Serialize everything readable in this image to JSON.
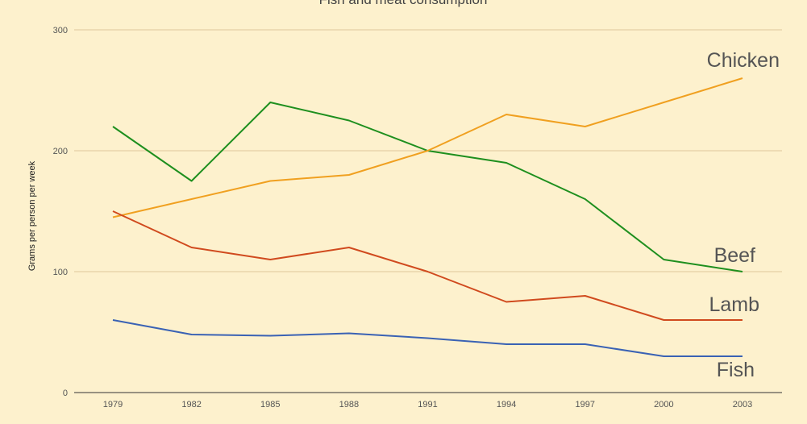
{
  "chart_data": {
    "type": "line",
    "title": "Fish and meat consumption",
    "xlabel": "",
    "ylabel": "Grams per person per week",
    "x": [
      "1979",
      "1982",
      "1985",
      "1988",
      "1991",
      "1994",
      "1997",
      "2000",
      "2003"
    ],
    "ylim": [
      0,
      300
    ],
    "yticks": [
      "0",
      "100",
      "200",
      "300"
    ],
    "grid": true,
    "legend": "inline-labels-right",
    "series": [
      {
        "name": "Beef",
        "color": "#1e8f1e",
        "values": [
          220,
          175,
          240,
          225,
          200,
          190,
          160,
          110,
          100
        ]
      },
      {
        "name": "Chicken",
        "color": "#f0a020",
        "values": [
          145,
          160,
          175,
          180,
          200,
          230,
          220,
          240,
          260
        ]
      },
      {
        "name": "Lamb",
        "color": "#d04a1e",
        "values": [
          150,
          120,
          110,
          120,
          100,
          75,
          80,
          60,
          60
        ]
      },
      {
        "name": "Fish",
        "color": "#3a62b4",
        "values": [
          60,
          48,
          47,
          49,
          45,
          40,
          40,
          30,
          30
        ]
      }
    ]
  }
}
